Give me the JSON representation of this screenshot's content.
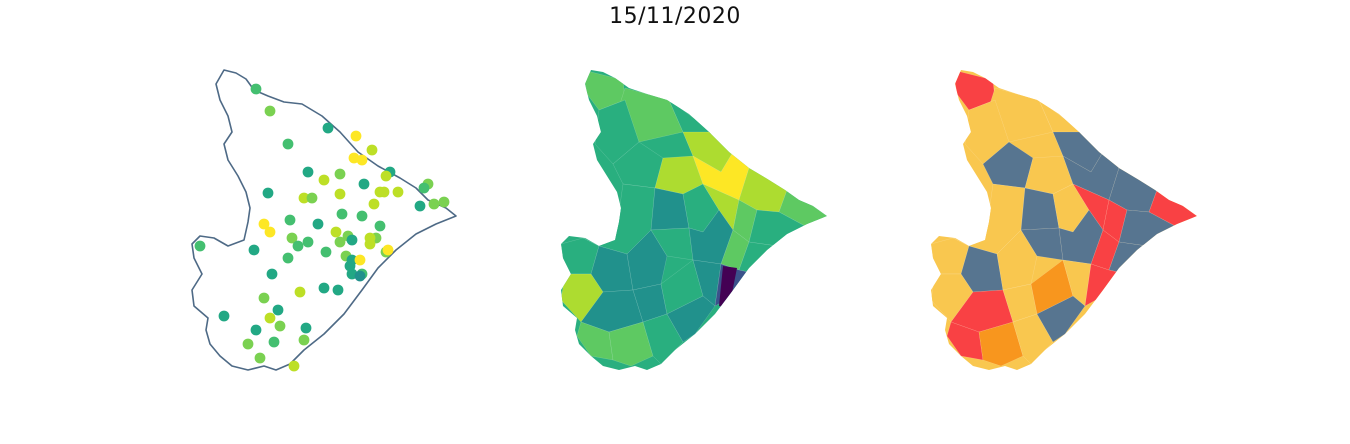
{
  "page": {
    "title": "15/11/2020"
  },
  "maps": [
    {
      "id": "points",
      "kind": "point-map",
      "outline_color": "#4e6a86"
    },
    {
      "id": "choropleth",
      "kind": "choropleth",
      "colormap": "viridis"
    },
    {
      "id": "classes",
      "kind": "categorical-choropleth",
      "colors": [
        "#f9c74f",
        "#577590",
        "#f94144",
        "#f8961e"
      ]
    }
  ],
  "colors": {
    "viridis": [
      "#440154",
      "#3b528b",
      "#21918c",
      "#29af7f",
      "#5ec962",
      "#addc30",
      "#fde725"
    ],
    "points_palette": [
      "#2a788e",
      "#21918c",
      "#22a884",
      "#44bf70",
      "#7ad151",
      "#bddf26",
      "#fde725"
    ]
  }
}
